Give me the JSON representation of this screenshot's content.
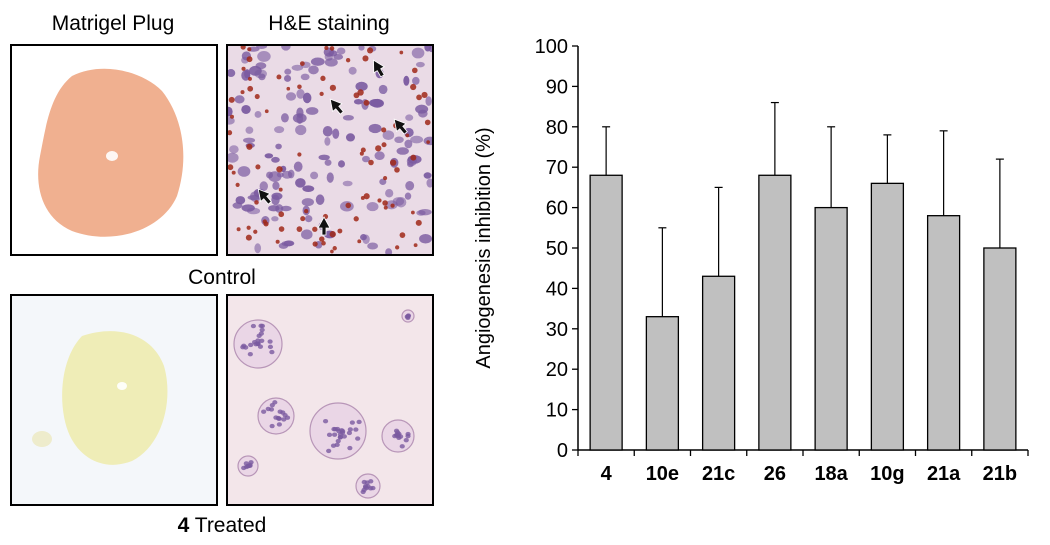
{
  "figure": {
    "col_headers": [
      "Matrigel Plug",
      "H&E staining"
    ],
    "row_labels": {
      "control": "Control",
      "treated_bold": "4",
      "treated_rest": " Treated"
    },
    "micrograph_colors": {
      "plug_control": "#f0b090",
      "plug_treated": "#efedb7",
      "he_background": "#eadbe6",
      "he_nucleus": "#7a5aa0",
      "rbc": "#a02818"
    }
  },
  "chart_data": {
    "type": "bar",
    "categories": [
      "4",
      "10e",
      "21c",
      "26",
      "18a",
      "10g",
      "21a",
      "21b"
    ],
    "series": [
      {
        "values": [
          68,
          33,
          43,
          68,
          60,
          66,
          58,
          50
        ],
        "errors": [
          12,
          22,
          22,
          18,
          20,
          12,
          21,
          22
        ]
      }
    ],
    "ylabel": "Angiogenesis inhibition (%)",
    "xlabel": "",
    "ylim": [
      0,
      100
    ],
    "yticks": [
      0,
      10,
      20,
      30,
      40,
      50,
      60,
      70,
      80,
      90,
      100
    ],
    "bar_color": "#c0c0c0"
  }
}
